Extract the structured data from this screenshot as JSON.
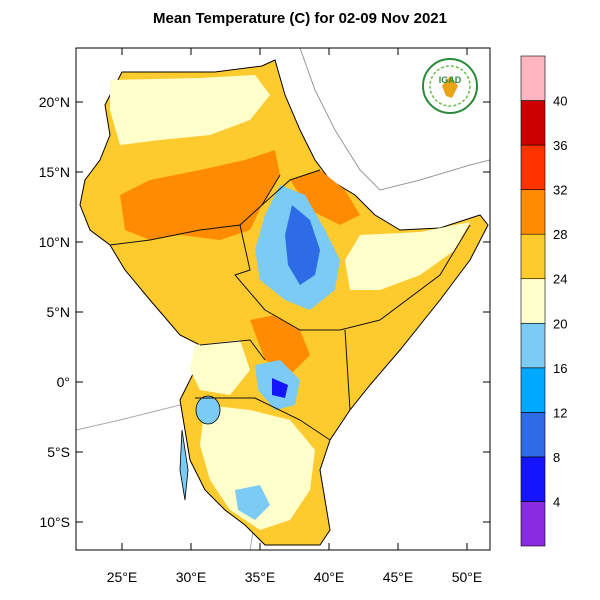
{
  "title": "Mean Temperature (C) for 02-09 Nov 2021",
  "logo_text": "IGAD",
  "lat_labels": [
    "20°N",
    "15°N",
    "10°N",
    "5°N",
    "0°",
    "5°S",
    "10°S"
  ],
  "lon_labels": [
    "25°E",
    "30°E",
    "35°E",
    "40°E",
    "45°E",
    "50°E"
  ],
  "colorbar": {
    "labels": [
      "4",
      "8",
      "12",
      "16",
      "20",
      "24",
      "28",
      "32",
      "36",
      "40"
    ],
    "colors": [
      "#8a2be2",
      "#1414ff",
      "#2e6be6",
      "#00a8ff",
      "#7ccbf5",
      "#ffffcc",
      "#fecb2f",
      "#ff8c00",
      "#ff3300",
      "#cc0000",
      "#ffb6c1"
    ]
  },
  "colors": {
    "ocean": "#ffffff",
    "frame": "#000000",
    "border": "#111111"
  }
}
